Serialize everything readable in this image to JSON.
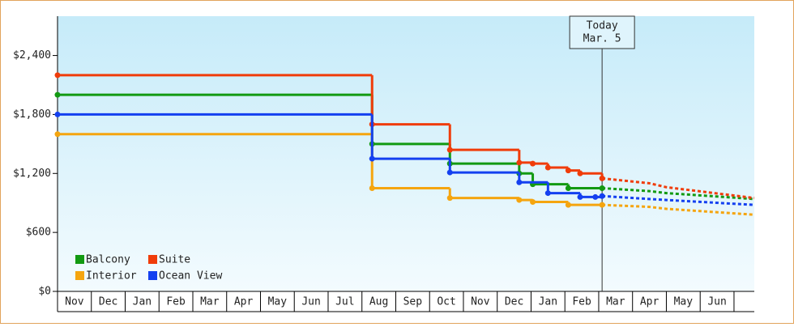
{
  "chart_data": {
    "type": "step-line",
    "xlim": [
      0,
      20.6
    ],
    "xticks": [
      {
        "value": 0,
        "label": "Nov"
      },
      {
        "value": 1,
        "label": "Dec"
      },
      {
        "value": 2,
        "label": "Jan"
      },
      {
        "value": 3,
        "label": "Feb"
      },
      {
        "value": 4,
        "label": "Mar"
      },
      {
        "value": 5,
        "label": "Apr"
      },
      {
        "value": 6,
        "label": "May"
      },
      {
        "value": 7,
        "label": "Jun"
      },
      {
        "value": 8,
        "label": "Jul"
      },
      {
        "value": 9,
        "label": "Aug"
      },
      {
        "value": 10,
        "label": "Sep"
      },
      {
        "value": 11,
        "label": "Oct"
      },
      {
        "value": 12,
        "label": "Nov"
      },
      {
        "value": 13,
        "label": "Dec"
      },
      {
        "value": 14,
        "label": "Jan"
      },
      {
        "value": 15,
        "label": "Feb"
      },
      {
        "value": 16,
        "label": "Mar"
      },
      {
        "value": 17,
        "label": "Apr"
      },
      {
        "value": 18,
        "label": "May"
      },
      {
        "value": 19,
        "label": "Jun"
      }
    ],
    "ylim": [
      0,
      2800
    ],
    "yticks": [
      {
        "value": 0,
        "label": "$0"
      },
      {
        "value": 600,
        "label": "$600"
      },
      {
        "value": 1200,
        "label": "$1,200"
      },
      {
        "value": 1800,
        "label": "$1,800"
      },
      {
        "value": 2400,
        "label": "$2,400"
      }
    ],
    "today": {
      "x": 16.1,
      "label": [
        "Today",
        "Mar. 5"
      ]
    },
    "legend": "bottom-left",
    "series": [
      {
        "name": "Balcony",
        "color": "#129a12",
        "x": [
          0,
          9.3,
          11.6,
          13.65,
          14.05,
          15.1,
          16.1
        ],
        "values": [
          2000,
          1500,
          1300,
          1200,
          1090,
          1050,
          1050
        ],
        "forecast": {
          "x": [
            17.5,
            18.0,
            20.6
          ],
          "values": [
            1020,
            1000,
            940
          ]
        }
      },
      {
        "name": "Suite",
        "color": "#f03c0a",
        "x": [
          0,
          9.3,
          11.6,
          13.65,
          14.05,
          14.5,
          15.1,
          15.45,
          16.1
        ],
        "values": [
          2200,
          1700,
          1440,
          1310,
          1300,
          1260,
          1230,
          1200,
          1150
        ],
        "forecast": {
          "x": [
            17.5,
            18.0,
            20.6
          ],
          "values": [
            1100,
            1060,
            950
          ]
        }
      },
      {
        "name": "Interior",
        "color": "#f5a50f",
        "x": [
          0,
          9.3,
          11.6,
          13.65,
          14.05,
          15.1,
          16.1
        ],
        "values": [
          1600,
          1050,
          950,
          930,
          910,
          880,
          880
        ],
        "forecast": {
          "x": [
            17.5,
            18.0,
            20.6
          ],
          "values": [
            860,
            840,
            780
          ]
        }
      },
      {
        "name": "Ocean View",
        "color": "#1440f0",
        "x": [
          0,
          9.3,
          11.6,
          13.65,
          14.5,
          15.45,
          15.9,
          16.1
        ],
        "values": [
          1800,
          1350,
          1210,
          1110,
          1000,
          960,
          960,
          970
        ],
        "forecast": {
          "x": [
            17.5,
            18.0,
            20.6
          ],
          "values": [
            940,
            930,
            880
          ]
        }
      }
    ]
  }
}
